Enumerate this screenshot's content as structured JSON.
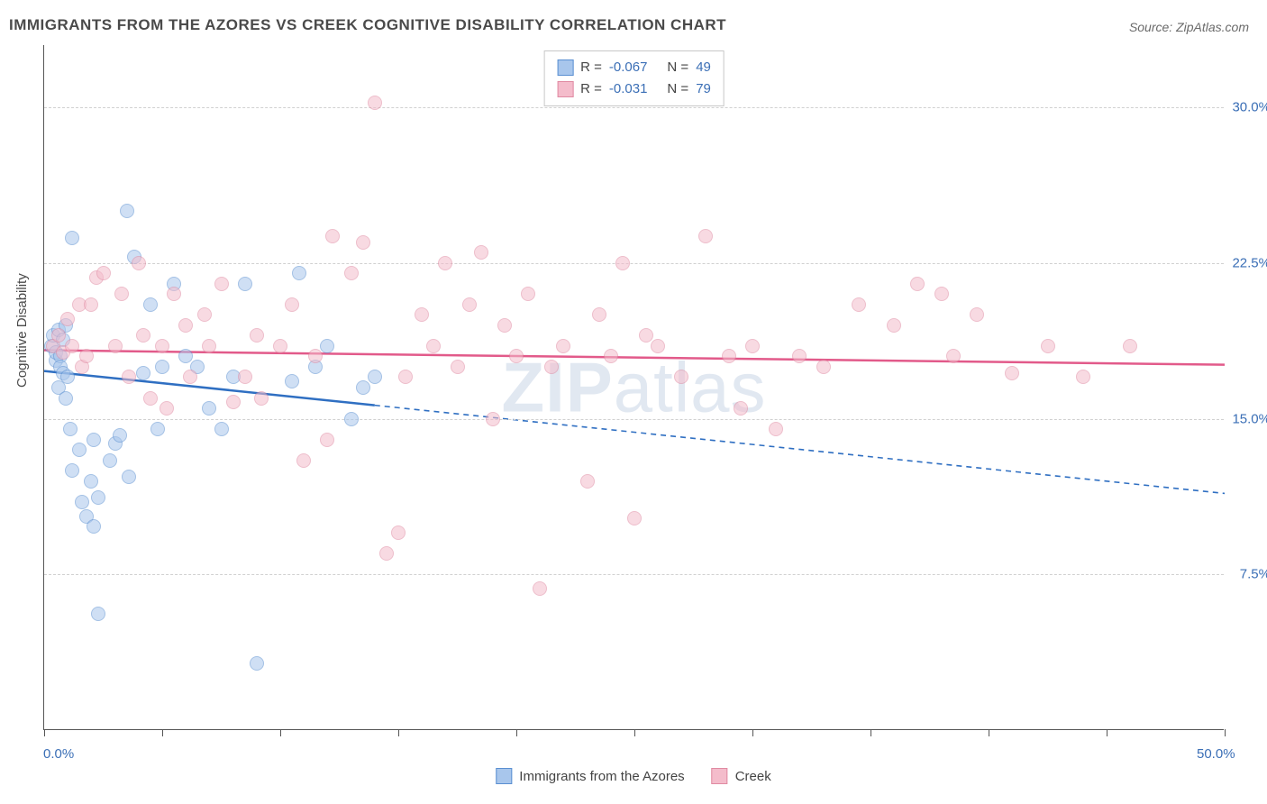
{
  "title": "IMMIGRANTS FROM THE AZORES VS CREEK COGNITIVE DISABILITY CORRELATION CHART",
  "source": "Source: ZipAtlas.com",
  "watermark_bold": "ZIP",
  "watermark_rest": "atlas",
  "yaxis_title": "Cognitive Disability",
  "chart": {
    "type": "scatter",
    "background_color": "#ffffff",
    "grid_color": "#d0d0d0",
    "axis_color": "#555555",
    "value_color": "#3b6fb6",
    "label_color": "#4a4a4a",
    "xlim": [
      0,
      50
    ],
    "ylim": [
      0,
      33
    ],
    "point_radius": 8,
    "point_opacity": 0.55,
    "yticks": [
      {
        "v": 7.5,
        "label": "7.5%"
      },
      {
        "v": 15.0,
        "label": "15.0%"
      },
      {
        "v": 22.5,
        "label": "22.5%"
      },
      {
        "v": 30.0,
        "label": "30.0%"
      }
    ],
    "xtick_values": [
      0,
      5,
      10,
      15,
      20,
      25,
      30,
      35,
      40,
      45,
      50
    ],
    "xaxis_labels": [
      {
        "v": 0,
        "label": "0.0%"
      },
      {
        "v": 50,
        "label": "50.0%"
      }
    ],
    "series": [
      {
        "id": "azores",
        "label": "Immigrants from the Azores",
        "fill": "#a8c6ec",
        "stroke": "#5a8fd1",
        "line_color": "#2f6fc2",
        "R": "-0.067",
        "N": "49",
        "trend": {
          "x1": 0,
          "y1": 17.3,
          "x2": 50,
          "y2": 11.4,
          "solid_until_x": 14
        },
        "points": [
          [
            0.3,
            18.5
          ],
          [
            0.4,
            19.0
          ],
          [
            0.5,
            17.8
          ],
          [
            0.5,
            18.2
          ],
          [
            0.6,
            19.3
          ],
          [
            0.6,
            16.5
          ],
          [
            0.7,
            18.0
          ],
          [
            0.7,
            17.5
          ],
          [
            0.8,
            17.2
          ],
          [
            0.8,
            18.8
          ],
          [
            0.9,
            16.0
          ],
          [
            0.9,
            19.5
          ],
          [
            1.0,
            17.0
          ],
          [
            1.1,
            14.5
          ],
          [
            1.2,
            12.5
          ],
          [
            1.2,
            23.7
          ],
          [
            1.5,
            13.5
          ],
          [
            1.6,
            11.0
          ],
          [
            1.8,
            10.3
          ],
          [
            2.0,
            12.0
          ],
          [
            2.1,
            9.8
          ],
          [
            2.1,
            14.0
          ],
          [
            2.3,
            11.2
          ],
          [
            2.3,
            5.6
          ],
          [
            3.0,
            13.8
          ],
          [
            3.2,
            14.2
          ],
          [
            3.5,
            25.0
          ],
          [
            3.8,
            22.8
          ],
          [
            4.2,
            17.2
          ],
          [
            4.5,
            20.5
          ],
          [
            4.8,
            14.5
          ],
          [
            5.0,
            17.5
          ],
          [
            5.5,
            21.5
          ],
          [
            6.0,
            18.0
          ],
          [
            6.5,
            17.5
          ],
          [
            7.0,
            15.5
          ],
          [
            7.5,
            14.5
          ],
          [
            8.0,
            17.0
          ],
          [
            8.5,
            21.5
          ],
          [
            9.0,
            3.2
          ],
          [
            10.5,
            16.8
          ],
          [
            10.8,
            22.0
          ],
          [
            11.5,
            17.5
          ],
          [
            12.0,
            18.5
          ],
          [
            13.0,
            15.0
          ],
          [
            13.5,
            16.5
          ],
          [
            14.0,
            17.0
          ],
          [
            2.8,
            13.0
          ],
          [
            3.6,
            12.2
          ]
        ]
      },
      {
        "id": "creek",
        "label": "Creek",
        "fill": "#f4bccb",
        "stroke": "#e08aa2",
        "line_color": "#e25a8a",
        "R": "-0.031",
        "N": "79",
        "trend": {
          "x1": 0,
          "y1": 18.3,
          "x2": 50,
          "y2": 17.6,
          "solid_until_x": 50
        },
        "points": [
          [
            0.4,
            18.5
          ],
          [
            0.6,
            19.0
          ],
          [
            0.8,
            18.2
          ],
          [
            1.0,
            19.8
          ],
          [
            1.2,
            18.5
          ],
          [
            1.5,
            20.5
          ],
          [
            1.6,
            17.5
          ],
          [
            1.8,
            18.0
          ],
          [
            2.0,
            20.5
          ],
          [
            2.2,
            21.8
          ],
          [
            2.5,
            22.0
          ],
          [
            3.0,
            18.5
          ],
          [
            3.3,
            21.0
          ],
          [
            3.6,
            17.0
          ],
          [
            4.0,
            22.5
          ],
          [
            4.2,
            19.0
          ],
          [
            4.5,
            16.0
          ],
          [
            5.0,
            18.5
          ],
          [
            5.2,
            15.5
          ],
          [
            5.5,
            21.0
          ],
          [
            6.0,
            19.5
          ],
          [
            6.2,
            17.0
          ],
          [
            6.8,
            20.0
          ],
          [
            7.0,
            18.5
          ],
          [
            7.5,
            21.5
          ],
          [
            8.0,
            15.8
          ],
          [
            8.5,
            17.0
          ],
          [
            9.0,
            19.0
          ],
          [
            9.2,
            16.0
          ],
          [
            10.0,
            18.5
          ],
          [
            10.5,
            20.5
          ],
          [
            11.0,
            13.0
          ],
          [
            11.5,
            18.0
          ],
          [
            12.0,
            14.0
          ],
          [
            12.2,
            23.8
          ],
          [
            13.0,
            22.0
          ],
          [
            13.5,
            23.5
          ],
          [
            14.0,
            30.2
          ],
          [
            14.5,
            8.5
          ],
          [
            15.0,
            9.5
          ],
          [
            15.3,
            17.0
          ],
          [
            16.0,
            20.0
          ],
          [
            16.5,
            18.5
          ],
          [
            17.0,
            22.5
          ],
          [
            17.5,
            17.5
          ],
          [
            18.0,
            20.5
          ],
          [
            18.5,
            23.0
          ],
          [
            19.0,
            15.0
          ],
          [
            19.5,
            19.5
          ],
          [
            20.0,
            18.0
          ],
          [
            20.5,
            21.0
          ],
          [
            21.0,
            6.8
          ],
          [
            21.5,
            17.5
          ],
          [
            22.0,
            18.5
          ],
          [
            23.0,
            12.0
          ],
          [
            23.5,
            20.0
          ],
          [
            24.0,
            18.0
          ],
          [
            24.5,
            22.5
          ],
          [
            25.0,
            10.2
          ],
          [
            25.5,
            19.0
          ],
          [
            26.0,
            18.5
          ],
          [
            27.0,
            17.0
          ],
          [
            28.0,
            23.8
          ],
          [
            29.0,
            18.0
          ],
          [
            29.5,
            15.5
          ],
          [
            30.0,
            18.5
          ],
          [
            31.0,
            14.5
          ],
          [
            32.0,
            18.0
          ],
          [
            33.0,
            17.5
          ],
          [
            34.5,
            20.5
          ],
          [
            36.0,
            19.5
          ],
          [
            37.0,
            21.5
          ],
          [
            38.0,
            21.0
          ],
          [
            38.5,
            18.0
          ],
          [
            39.5,
            20.0
          ],
          [
            41.0,
            17.2
          ],
          [
            42.5,
            18.5
          ],
          [
            44.0,
            17.0
          ],
          [
            46.0,
            18.5
          ]
        ]
      }
    ]
  },
  "legend_bottom": [
    {
      "series": "azores"
    },
    {
      "series": "creek"
    }
  ]
}
